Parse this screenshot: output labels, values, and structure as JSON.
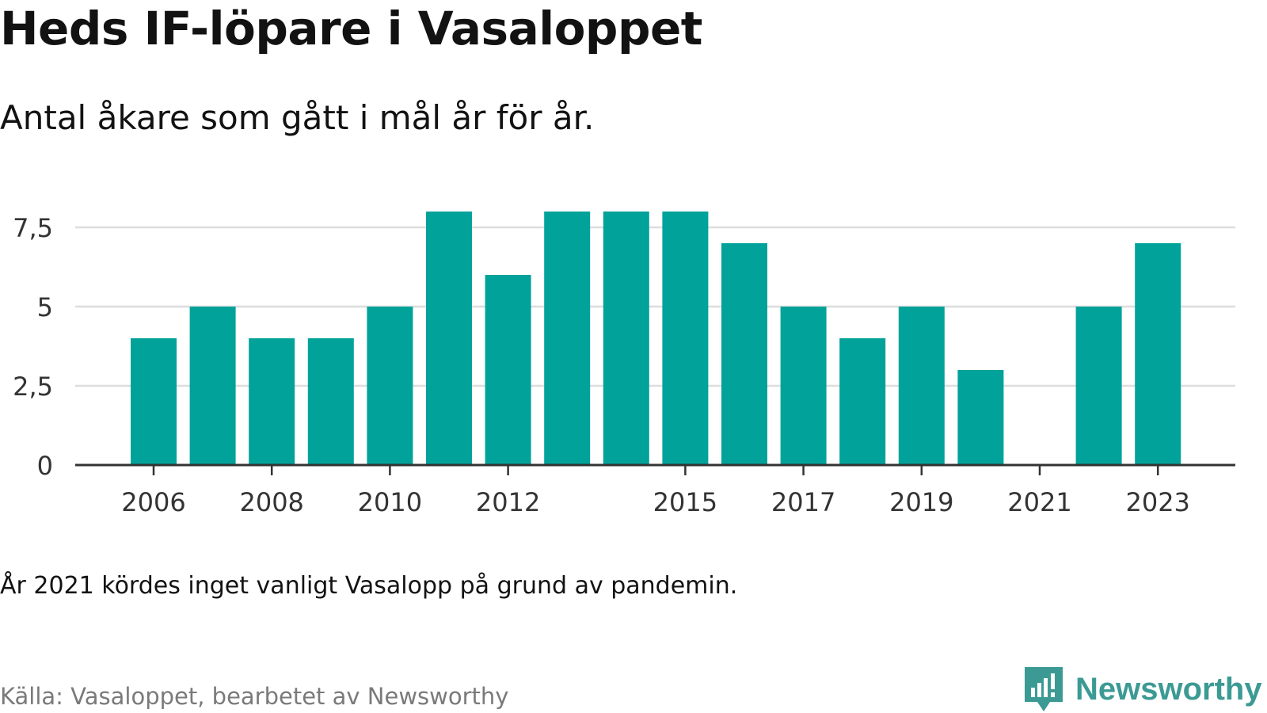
{
  "title": "Heds IF-löpare i Vasaloppet",
  "subtitle": "Antal åkare som gått i mål år för år.",
  "note": "År 2021 kördes inget vanligt Vasalopp på grund av pandemin.",
  "source": "Källa: Vasaloppet, bearbetet av Newsworthy",
  "brand": {
    "name": "Newsworthy",
    "color": "#3c9a94",
    "icon": "newsworthy-logo-icon"
  },
  "colors": {
    "bar": "#00a29a",
    "grid": "#dddddd",
    "axis": "#333333"
  },
  "chart_data": {
    "type": "bar",
    "categories": [
      "2006",
      "2007",
      "2008",
      "2009",
      "2010",
      "2011",
      "2012",
      "2013",
      "2014",
      "2015",
      "2016",
      "2017",
      "2018",
      "2019",
      "2020",
      "2021",
      "2022",
      "2023"
    ],
    "values": [
      4,
      5,
      4,
      4,
      5,
      8,
      6,
      8,
      8,
      8,
      7,
      5,
      4,
      5,
      3,
      0,
      5,
      7
    ],
    "x_tick_labels": [
      "2006",
      "2008",
      "2010",
      "2012",
      "2015",
      "2017",
      "2019",
      "2021",
      "2023"
    ],
    "y_ticks": [
      0,
      2.5,
      5,
      7.5
    ],
    "y_tick_labels": [
      "0",
      "2,5",
      "5",
      "7,5"
    ],
    "ylim": [
      0,
      8
    ],
    "grid": true
  }
}
